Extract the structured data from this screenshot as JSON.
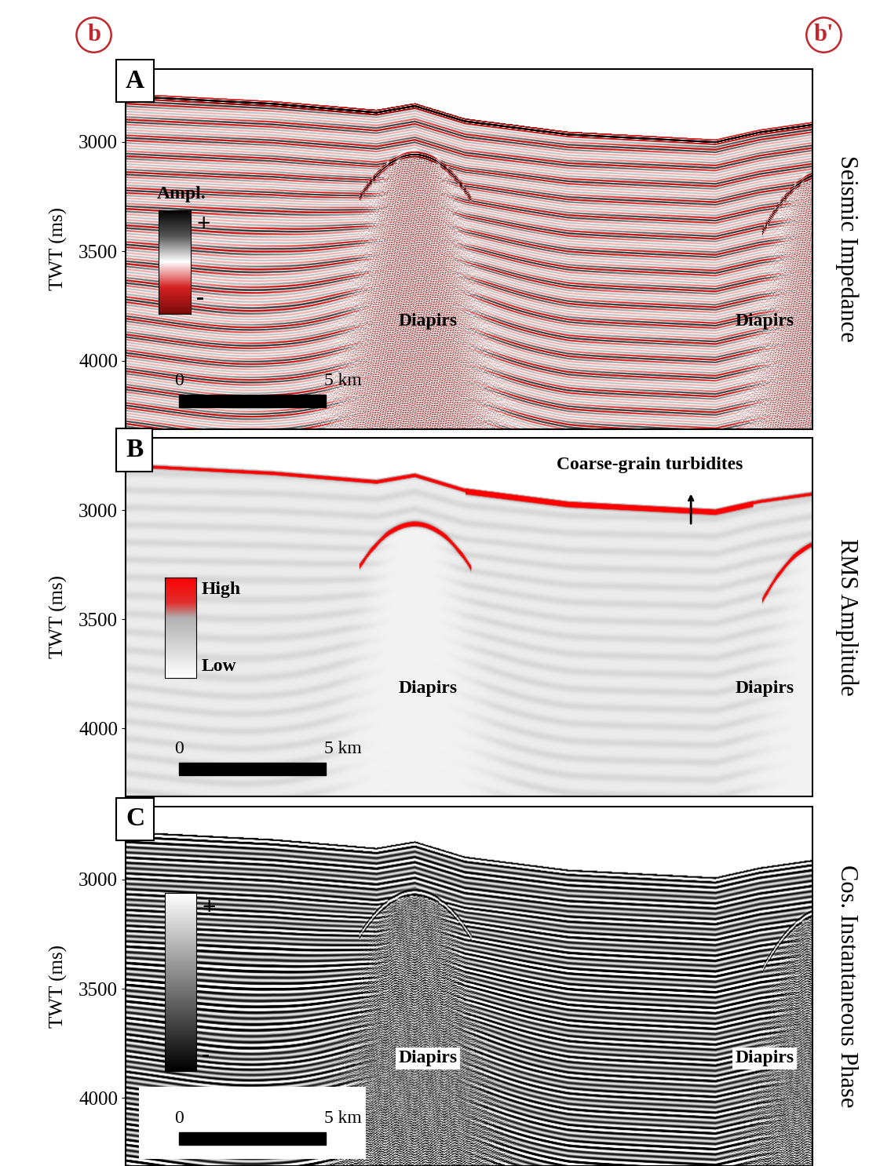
{
  "section_labels": [
    "b",
    "b'"
  ],
  "chart_data": [
    {
      "type": "seismic_section",
      "title": "A",
      "subtitle": "Seismic Impedance",
      "ylabel": "TWT (ms)",
      "xlim": [
        0,
        23.3
      ],
      "ylim": [
        4312,
        2667
      ],
      "yticks": [
        3000,
        3500,
        4000
      ],
      "tick_labels": "y",
      "colorbar": {
        "title": "Ampl.",
        "labels": [
          "+",
          "-"
        ]
      },
      "annotations": [
        "Diapirs",
        "Diapirs"
      ],
      "scale_bar": {
        "values": [
          0,
          5
        ],
        "value_labels": [
          "0",
          "5 km"
        ]
      }
    },
    {
      "type": "seismic_section",
      "title": "B",
      "subtitle": "RMS Amplitude",
      "ylabel": "TWT (ms)",
      "xlim": [
        0,
        23.3
      ],
      "ylim": [
        4312,
        2667
      ],
      "yticks": [
        3000,
        3500,
        4000
      ],
      "tick_labels": "y",
      "colorbar": {
        "labels": [
          "High",
          "Low"
        ]
      },
      "annotations": [
        "Diapirs",
        "Diapirs"
      ],
      "arrow_annotation": "Coarse-grain turbidites",
      "scale_bar": {
        "values": [
          0,
          5
        ],
        "value_labels": [
          "0",
          "5 km"
        ]
      }
    },
    {
      "type": "seismic_section",
      "title": "C",
      "subtitle": "Cos. Instantaneous Phase",
      "ylabel": "TWT (ms)",
      "xlim": [
        0,
        23.3
      ],
      "ylim": [
        4312,
        2667
      ],
      "yticks": [
        3000,
        3500,
        4000
      ],
      "tick_labels": "y",
      "colorbar": {
        "labels": [
          "+",
          "-"
        ]
      },
      "annotations": [
        "Diapirs",
        "Diapirs"
      ],
      "scale_bar": {
        "values": [
          0,
          5
        ],
        "value_labels": [
          "0",
          "5 km"
        ]
      }
    }
  ]
}
